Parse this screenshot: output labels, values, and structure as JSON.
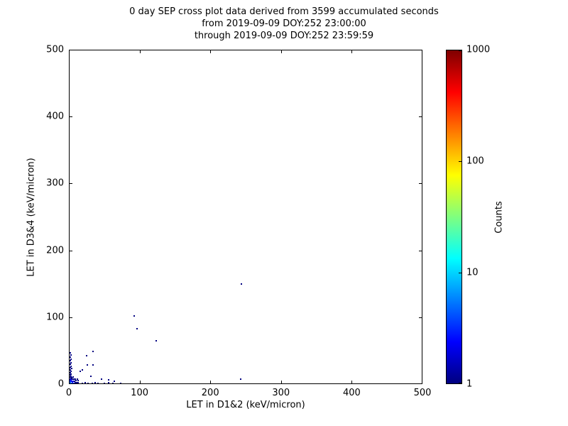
{
  "title": {
    "line1": "0 day SEP cross plot data derived from 3599 accumulated seconds",
    "line2": "from 2019-09-09 DOY:252 23:00:00",
    "line3": "through 2019-09-09 DOY:252 23:59:59"
  },
  "chart_data": {
    "type": "scatter",
    "title": "0 day SEP cross plot data derived from 3599 accumulated seconds from 2019-09-09 DOY:252 23:00:00 through 2019-09-09 DOY:252 23:59:59",
    "xlabel": "LET in D1&2 (keV/micron)",
    "ylabel": "LET in D3&4 (keV/micron)",
    "xlim": [
      0,
      500
    ],
    "ylim": [
      0,
      500
    ],
    "xticks": [
      0,
      100,
      200,
      300,
      400,
      500
    ],
    "yticks": [
      0,
      100,
      200,
      300,
      400,
      500
    ],
    "grid": false,
    "colorbar": {
      "label": "Counts",
      "scale": "log",
      "range": [
        1,
        1000
      ],
      "ticks": [
        1,
        10,
        100,
        1000
      ],
      "colormap": "jet",
      "gradient_stops": [
        "#00007f",
        "#0000ff",
        "#007fff",
        "#00ffff",
        "#7fff7f",
        "#ffff00",
        "#ff7f00",
        "#ff0000",
        "#7f0000"
      ]
    },
    "points": [
      [
        1,
        1,
        8
      ],
      [
        2,
        1,
        6
      ],
      [
        3,
        1,
        5
      ],
      [
        4,
        1,
        4
      ],
      [
        5,
        1,
        4
      ],
      [
        6,
        1,
        3
      ],
      [
        7,
        1,
        3
      ],
      [
        8,
        1,
        2
      ],
      [
        9,
        1,
        2
      ],
      [
        10,
        1,
        2
      ],
      [
        11,
        1,
        1
      ],
      [
        12,
        1,
        1
      ],
      [
        13,
        1,
        1
      ],
      [
        15,
        1,
        1
      ],
      [
        1,
        2,
        6
      ],
      [
        2,
        2,
        5
      ],
      [
        3,
        2,
        4
      ],
      [
        4,
        3,
        3
      ],
      [
        6,
        2,
        2
      ],
      [
        8,
        3,
        1
      ],
      [
        10,
        3,
        1
      ],
      [
        12,
        3,
        1
      ],
      [
        1,
        4,
        4
      ],
      [
        2,
        5,
        3
      ],
      [
        3,
        5,
        2
      ],
      [
        5,
        5,
        2
      ],
      [
        7,
        5,
        1
      ],
      [
        9,
        6,
        1
      ],
      [
        12,
        6,
        1
      ],
      [
        1,
        6,
        3
      ],
      [
        2,
        7,
        2
      ],
      [
        4,
        8,
        1
      ],
      [
        6,
        8,
        1
      ],
      [
        8,
        8,
        1
      ],
      [
        11,
        9,
        1
      ],
      [
        1,
        9,
        2
      ],
      [
        2,
        10,
        1
      ],
      [
        3,
        11,
        1
      ],
      [
        5,
        12,
        1
      ],
      [
        1,
        12,
        1
      ],
      [
        2,
        13,
        1
      ],
      [
        17,
        1,
        1
      ],
      [
        18,
        2,
        1
      ],
      [
        20,
        1,
        1
      ],
      [
        22,
        3,
        1
      ],
      [
        24,
        1,
        1
      ],
      [
        26,
        2,
        1
      ],
      [
        28,
        1,
        1
      ],
      [
        30,
        1,
        1
      ],
      [
        32,
        2,
        1
      ],
      [
        34,
        1,
        1
      ],
      [
        36,
        3,
        1
      ],
      [
        38,
        1,
        1
      ],
      [
        40,
        2,
        1
      ],
      [
        43,
        1,
        1
      ],
      [
        46,
        1,
        1
      ],
      [
        49,
        2,
        1
      ],
      [
        52,
        1,
        1
      ],
      [
        55,
        3,
        1
      ],
      [
        58,
        1,
        1
      ],
      [
        61,
        2,
        1
      ],
      [
        64,
        1,
        1
      ],
      [
        68,
        1,
        1
      ],
      [
        72,
        2,
        1
      ],
      [
        76,
        1,
        1
      ],
      [
        80,
        1,
        1
      ],
      [
        1,
        15,
        1
      ],
      [
        2,
        16,
        1
      ],
      [
        1,
        18,
        1
      ],
      [
        2,
        20,
        1
      ],
      [
        1,
        22,
        1
      ],
      [
        3,
        24,
        1
      ],
      [
        1,
        26,
        1
      ],
      [
        2,
        28,
        1
      ],
      [
        1,
        31,
        1
      ],
      [
        2,
        33,
        1
      ],
      [
        1,
        36,
        1
      ],
      [
        2,
        38,
        1
      ],
      [
        1,
        41,
        1
      ],
      [
        2,
        45,
        1
      ],
      [
        1,
        48,
        1
      ],
      [
        15,
        20,
        1
      ],
      [
        18,
        22,
        1
      ],
      [
        25,
        30,
        1
      ],
      [
        33,
        30,
        1
      ],
      [
        24,
        43,
        1
      ],
      [
        33,
        50,
        1
      ],
      [
        30,
        13,
        1
      ],
      [
        45,
        8,
        1
      ],
      [
        55,
        7,
        1
      ],
      [
        63,
        5,
        1
      ],
      [
        91,
        103,
        1
      ],
      [
        95,
        84,
        1
      ],
      [
        122,
        66,
        1
      ],
      [
        243,
        151,
        1
      ],
      [
        242,
        9,
        1
      ]
    ]
  }
}
